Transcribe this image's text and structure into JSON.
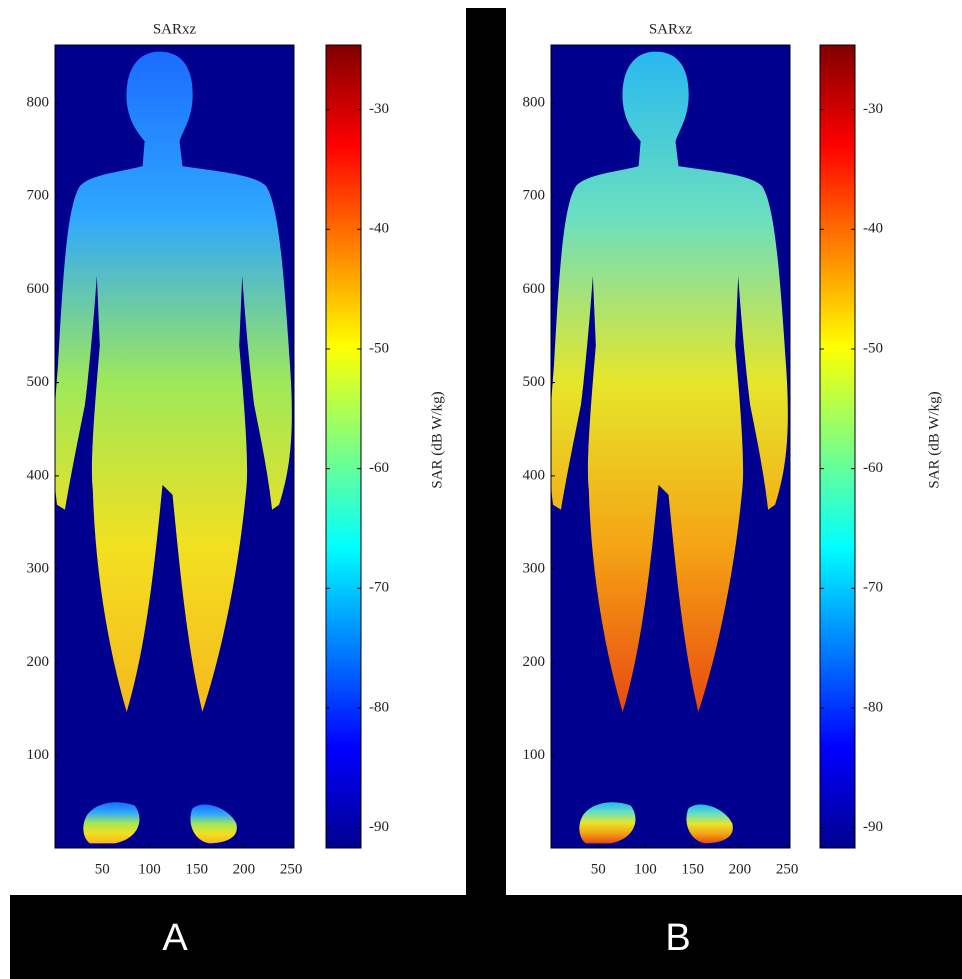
{
  "chart_data": [
    {
      "type": "heatmap",
      "title": "SARxz",
      "panel_label": "A",
      "body_colors": [
        "#1a6cff",
        "#2fa8ff",
        "#9ee85a",
        "#f2e020",
        "#f6b81c"
      ],
      "xlim": [
        0,
        253
      ],
      "xticks": [
        50,
        100,
        150,
        200,
        250
      ],
      "ylim": [
        1,
        862
      ],
      "yticks": [
        100,
        200,
        300,
        400,
        500,
        600,
        700,
        800
      ],
      "colorbar": {
        "label": "SAR (dB W/kg)",
        "lim": [
          -91.7,
          -24.6
        ],
        "ticks": [
          -90,
          -80,
          -70,
          -60,
          -50,
          -40,
          -30
        ]
      }
    },
    {
      "type": "heatmap",
      "title": "SARxz",
      "panel_label": "B",
      "body_colors": [
        "#28b8f0",
        "#6adfc0",
        "#e6e62a",
        "#f5a414",
        "#e84a10"
      ],
      "xlim": [
        0,
        253
      ],
      "xticks": [
        50,
        100,
        150,
        200,
        250
      ],
      "ylim": [
        1,
        862
      ],
      "yticks": [
        100,
        200,
        300,
        400,
        500,
        600,
        700,
        800
      ],
      "colorbar": {
        "label": "SAR (dB W/kg)",
        "lim": [
          -91.7,
          -24.6
        ],
        "ticks": [
          -90,
          -80,
          -70,
          -60,
          -50,
          -40,
          -30
        ]
      }
    }
  ]
}
